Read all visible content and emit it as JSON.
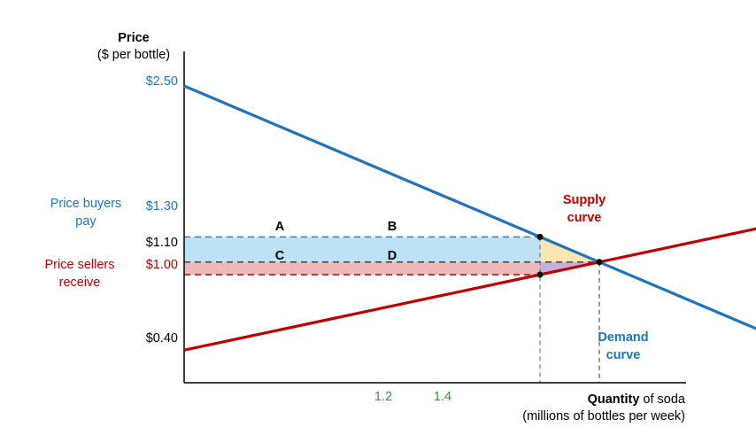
{
  "chart_data": {
    "type": "line",
    "y_axis": {
      "title": "Price",
      "subtitle": "($ per bottle)",
      "tick_labels": [
        "$2.50",
        "$1.30",
        "$1.10",
        "$1.00",
        "$0.40"
      ]
    },
    "x_axis": {
      "title_bold": "Quantity",
      "title_rest": " of soda",
      "subtitle": "(millions of bottles per week)",
      "tick_labels": [
        "1.2",
        "1.4"
      ]
    },
    "side_labels": {
      "buyers": [
        "Price buyers",
        "pay"
      ],
      "sellers": [
        "Price sellers",
        "receive"
      ]
    },
    "series": [
      {
        "name": "Demand curve",
        "label_lines": [
          "Demand",
          "curve"
        ],
        "color": "#1f73c0",
        "points": [
          [
            0,
            2.5
          ],
          [
            1.2,
            1.3
          ],
          [
            1.4,
            1.1
          ],
          [
            2.73,
            -0.23
          ]
        ]
      },
      {
        "name": "Supply curve",
        "label_lines": [
          "Supply",
          "curve"
        ],
        "color": "#c00000",
        "points": [
          [
            0,
            0.4
          ],
          [
            1.2,
            1.0
          ],
          [
            1.4,
            1.1
          ],
          [
            2.44,
            1.62
          ]
        ]
      }
    ],
    "regions": [
      {
        "label": "A",
        "color": "#bde1f5"
      },
      {
        "label": "B",
        "color": "#fbe5b0"
      },
      {
        "label": "C",
        "color": "#efb9b9"
      },
      {
        "label": "D",
        "color": "#c7b1d8"
      }
    ],
    "colors": {
      "demand": "#1f73c0",
      "supply": "#c00000",
      "quantity_ticks": "#2e9b2e",
      "axis": "#000000"
    }
  }
}
